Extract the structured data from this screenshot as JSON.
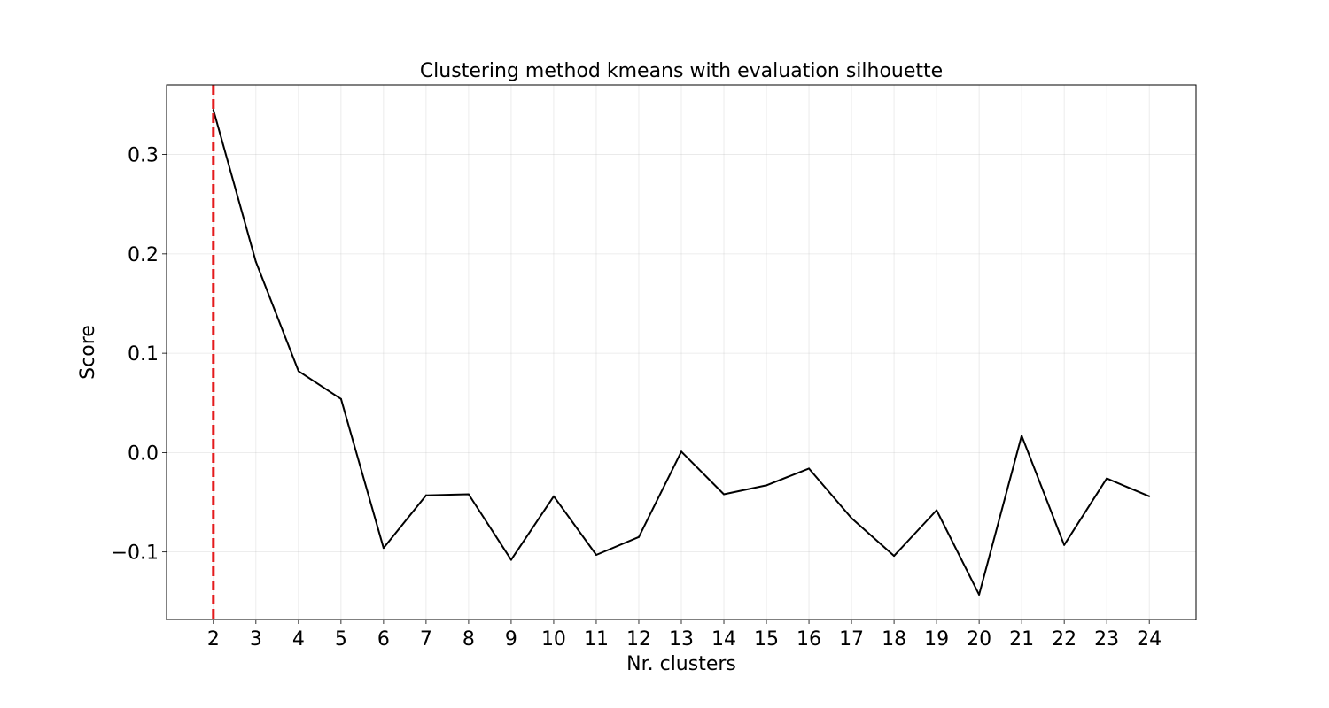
{
  "chart_data": {
    "type": "line",
    "title": "Clustering method kmeans with evaluation silhouette",
    "xlabel": "Nr. clusters",
    "ylabel": "Score",
    "x": [
      2,
      3,
      4,
      5,
      6,
      7,
      8,
      9,
      10,
      11,
      12,
      13,
      14,
      15,
      16,
      17,
      18,
      19,
      20,
      21,
      22,
      23,
      24
    ],
    "x_ticks": [
      "2",
      "3",
      "4",
      "5",
      "6",
      "7",
      "8",
      "9",
      "10",
      "11",
      "12",
      "13",
      "14",
      "15",
      "16",
      "17",
      "18",
      "19",
      "20",
      "21",
      "22",
      "23",
      "24"
    ],
    "y_ticks": [
      -0.1,
      0.0,
      0.1,
      0.2,
      0.3
    ],
    "y_tick_labels": [
      "−0.1",
      "0.0",
      "0.1",
      "0.2",
      "0.3"
    ],
    "xlim": [
      0.9,
      25.1
    ],
    "ylim": [
      -0.168,
      0.37
    ],
    "grid": true,
    "series": [
      {
        "color": "#000000",
        "values": [
          0.345,
          0.192,
          0.082,
          0.054,
          -0.096,
          -0.043,
          -0.042,
          -0.108,
          -0.044,
          -0.103,
          -0.085,
          0.001,
          -0.042,
          -0.033,
          -0.016,
          -0.066,
          -0.104,
          -0.058,
          -0.143,
          0.017,
          -0.093,
          -0.026,
          -0.044
        ]
      }
    ],
    "optimal_marker": {
      "x": 2,
      "color": "#e41a1c",
      "style": "dashed"
    }
  }
}
